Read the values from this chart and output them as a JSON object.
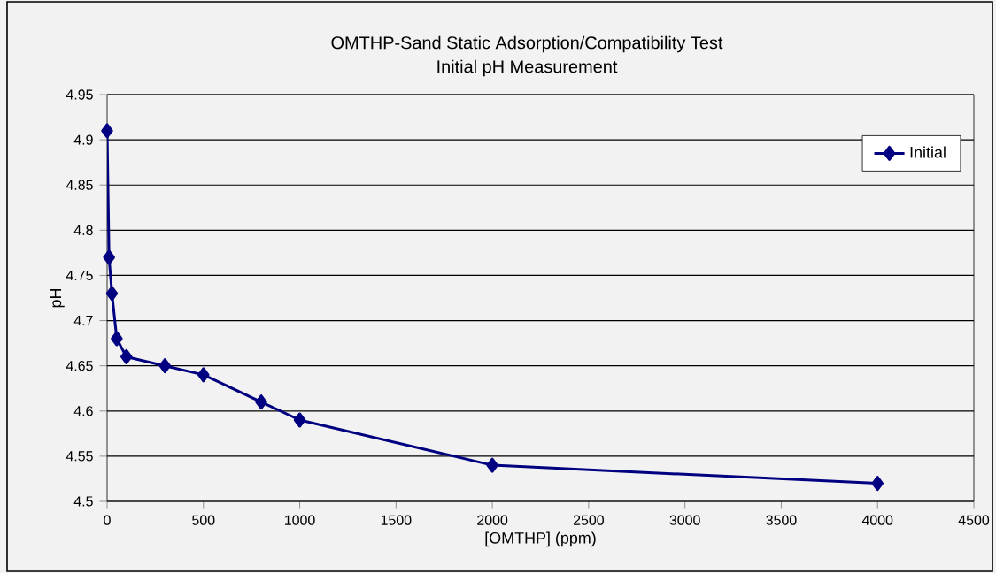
{
  "chart_data": {
    "type": "line",
    "title": "OMTHP-Sand Static Adsorption/Compatibility  Test",
    "subtitle": "Initial pH Measurement",
    "xlabel": "[OMTHP] (ppm)",
    "ylabel": "pH",
    "x": [
      0,
      10,
      25,
      50,
      100,
      300,
      500,
      800,
      1000,
      2000,
      4000
    ],
    "series": [
      {
        "name": "Initial",
        "color": "#000080",
        "values": [
          4.91,
          4.77,
          4.73,
          4.68,
          4.66,
          4.65,
          4.64,
          4.61,
          4.59,
          4.54,
          4.52
        ]
      }
    ],
    "xlim": [
      0,
      4500
    ],
    "ylim": [
      4.5,
      4.95
    ],
    "xticks": [
      0,
      500,
      1000,
      1500,
      2000,
      2500,
      3000,
      3500,
      4000,
      4500
    ],
    "yticks": [
      4.5,
      4.55,
      4.6,
      4.65,
      4.7,
      4.75,
      4.8,
      4.85,
      4.9,
      4.95
    ],
    "grid": "y",
    "legend": "top right",
    "marker": "diamond",
    "line_style": "solid"
  }
}
